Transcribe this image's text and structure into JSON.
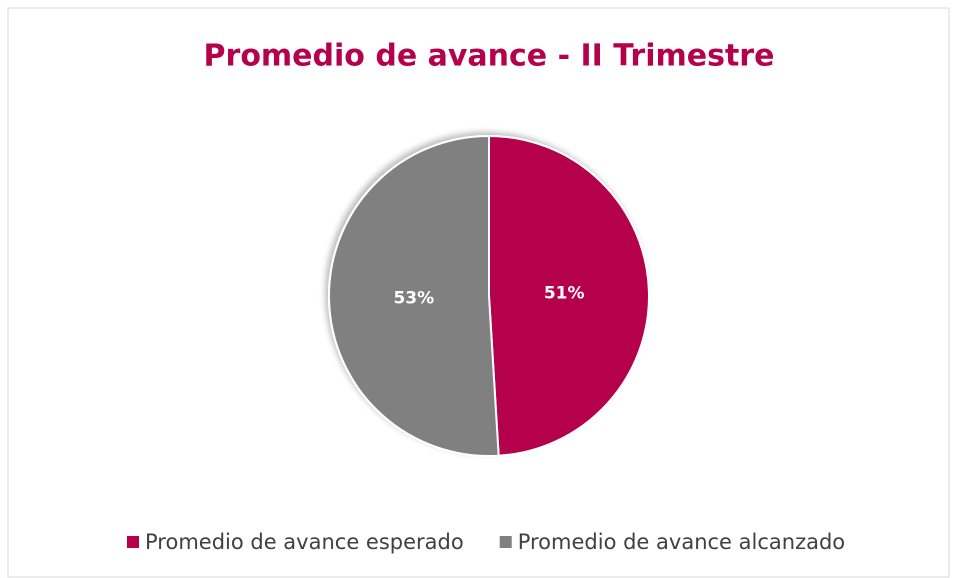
{
  "chart_data": {
    "type": "pie",
    "title": "Promedio de avance - II Trimestre",
    "categories": [
      "Promedio de avance esperado",
      "Promedio de avance alcanzado"
    ],
    "values": [
      51,
      53
    ],
    "value_labels": [
      "51%",
      "53%"
    ],
    "colors": [
      "#b5004b",
      "#808080"
    ],
    "legend": "bottom"
  }
}
